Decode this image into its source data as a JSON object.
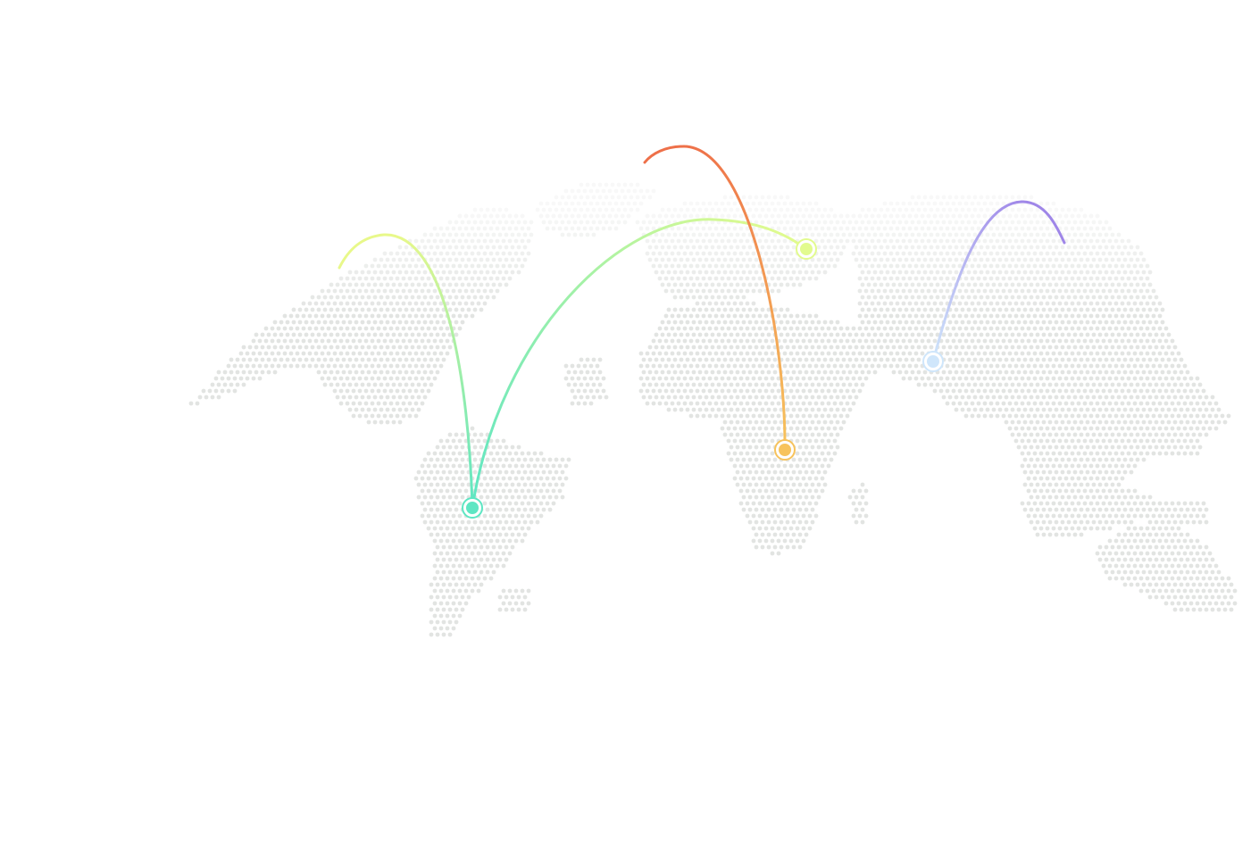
{
  "map": {
    "dot_color": "#e2e4e2",
    "background": "#ffffff",
    "arcs": [
      {
        "id": "south-america-to-north-america",
        "from_color": "#5ee6c3",
        "to_color": "#e8f88a"
      },
      {
        "id": "south-america-to-europe",
        "from_color": "#5ee6c3",
        "to_color": "#e2fb8e"
      },
      {
        "id": "africa-to-north-africa",
        "from_color": "#f7c35c",
        "to_color": "#ee7049"
      },
      {
        "id": "asia-to-russia",
        "from_color": "#cfe6fb",
        "to_color": "#9f86e8"
      }
    ],
    "markers": [
      {
        "id": "south-america-marker",
        "color": "#5ee6c3"
      },
      {
        "id": "europe-marker",
        "color": "#e2fb8e"
      },
      {
        "id": "africa-marker",
        "color": "#f7c35c"
      },
      {
        "id": "asia-marker",
        "color": "#cfe6fb"
      }
    ]
  }
}
